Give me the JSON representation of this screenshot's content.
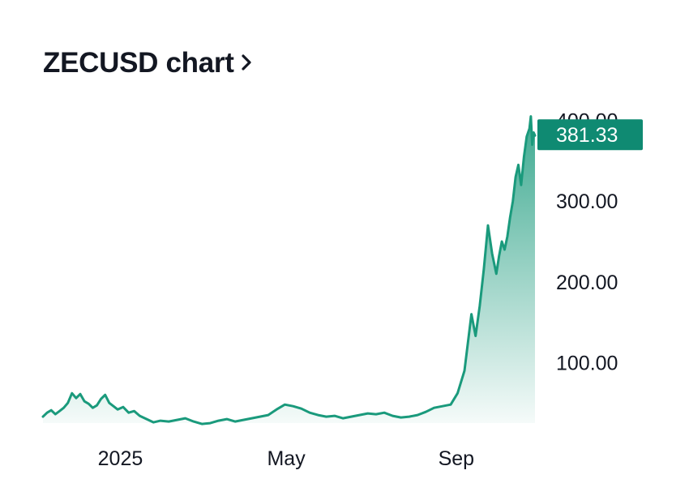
{
  "header": {
    "title": "ZECUSD chart",
    "chevron_icon": "chevron-right-icon"
  },
  "colors": {
    "line": "#1a9a7c",
    "label_bg": "#0f8a72",
    "text": "#131722"
  },
  "chart_data": {
    "type": "area",
    "title": "ZECUSD chart",
    "xlabel": "",
    "ylabel": "",
    "x_ticks": [
      {
        "label": "2025",
        "date": "2025-01-01"
      },
      {
        "label": "May",
        "date": "2025-05-01"
      },
      {
        "label": "Sep",
        "date": "2025-09-01"
      }
    ],
    "y_ticks": [
      "100.00",
      "200.00",
      "300.00",
      "400.00"
    ],
    "ylim": [
      0,
      420
    ],
    "xlim": [
      "2024-11-06",
      "2025-10-28"
    ],
    "last_value_label": "381.33",
    "grid": false,
    "legend": "none",
    "series": [
      {
        "x": [
          "2024-11-06",
          "2024-11-09",
          "2024-11-12",
          "2024-11-15",
          "2024-11-18",
          "2024-11-21",
          "2024-11-24",
          "2024-11-27",
          "2024-11-30",
          "2024-12-03",
          "2024-12-06",
          "2024-12-09",
          "2024-12-12",
          "2024-12-15",
          "2024-12-18",
          "2024-12-21",
          "2024-12-24",
          "2024-12-27",
          "2024-12-30",
          "2025-01-03",
          "2025-01-07",
          "2025-01-11",
          "2025-01-15",
          "2025-01-20",
          "2025-01-25",
          "2025-01-30",
          "2025-02-05",
          "2025-02-11",
          "2025-02-17",
          "2025-02-23",
          "2025-03-01",
          "2025-03-07",
          "2025-03-13",
          "2025-03-19",
          "2025-03-25",
          "2025-03-31",
          "2025-04-06",
          "2025-04-12",
          "2025-04-18",
          "2025-04-24",
          "2025-04-30",
          "2025-05-06",
          "2025-05-12",
          "2025-05-18",
          "2025-05-24",
          "2025-05-30",
          "2025-06-05",
          "2025-06-11",
          "2025-06-17",
          "2025-06-23",
          "2025-06-29",
          "2025-07-05",
          "2025-07-11",
          "2025-07-17",
          "2025-07-23",
          "2025-07-29",
          "2025-08-04",
          "2025-08-10",
          "2025-08-16",
          "2025-08-22",
          "2025-08-28",
          "2025-09-02",
          "2025-09-07",
          "2025-09-12",
          "2025-09-15",
          "2025-09-18",
          "2025-09-21",
          "2025-09-24",
          "2025-09-27",
          "2025-09-30",
          "2025-10-02",
          "2025-10-04",
          "2025-10-06",
          "2025-10-08",
          "2025-10-10",
          "2025-10-12",
          "2025-10-14",
          "2025-10-16",
          "2025-10-18",
          "2025-10-20",
          "2025-10-22",
          "2025-10-24",
          "2025-10-25",
          "2025-10-26",
          "2025-10-27",
          "2025-10-28"
        ],
        "values": [
          33,
          38,
          41,
          36,
          40,
          44,
          50,
          62,
          56,
          61,
          52,
          49,
          44,
          47,
          55,
          60,
          50,
          46,
          42,
          45,
          38,
          40,
          34,
          30,
          26,
          28,
          27,
          29,
          31,
          27,
          24,
          25,
          28,
          30,
          27,
          29,
          31,
          33,
          35,
          42,
          48,
          46,
          43,
          38,
          35,
          33,
          34,
          31,
          33,
          35,
          37,
          36,
          38,
          34,
          32,
          33,
          35,
          39,
          44,
          46,
          48,
          62,
          90,
          160,
          133,
          170,
          216,
          270,
          235,
          210,
          232,
          250,
          240,
          256,
          280,
          300,
          330,
          345,
          320,
          355,
          380,
          390,
          405,
          370,
          385,
          381.33
        ]
      }
    ]
  }
}
